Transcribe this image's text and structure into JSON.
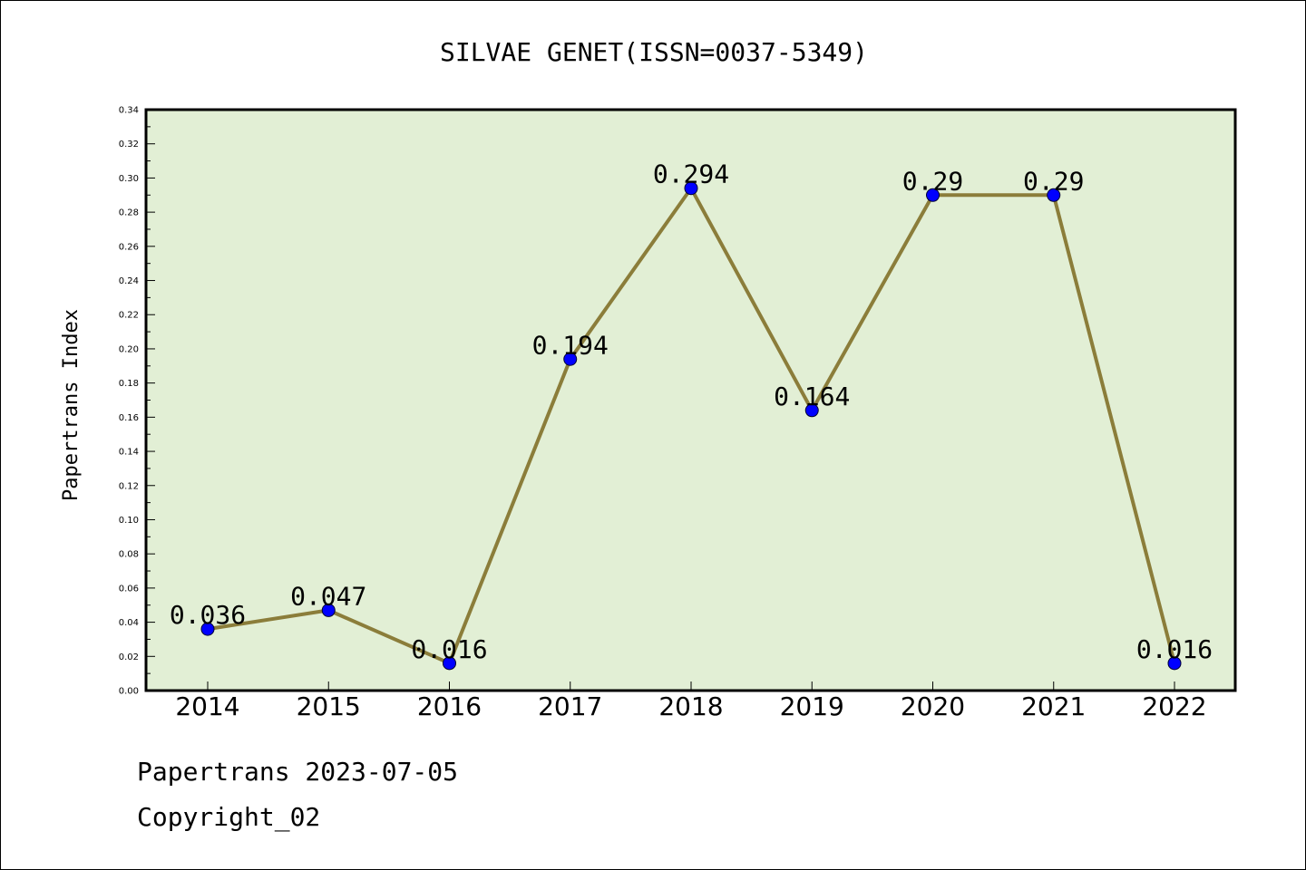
{
  "chart_data": {
    "type": "line",
    "title": "SILVAE GENET(ISSN=0037-5349)",
    "xlabel": "",
    "ylabel": "Papertrans Index",
    "categories": [
      "2014",
      "2015",
      "2016",
      "2017",
      "2018",
      "2019",
      "2020",
      "2021",
      "2022"
    ],
    "series": [
      {
        "values": [
          0.036,
          0.047,
          0.016,
          0.194,
          0.294,
          0.164,
          0.29,
          0.29,
          0.016
        ],
        "labels": [
          "0.036",
          "0.047",
          "0.016",
          "0.194",
          "0.294",
          "0.164",
          "0.29",
          "0.29",
          "0.016"
        ]
      }
    ],
    "ylim": [
      0,
      0.34
    ],
    "yticks": [
      "0.00",
      "0.02",
      "0.04",
      "0.06",
      "0.08",
      "0.10",
      "0.12",
      "0.14",
      "0.16",
      "0.18",
      "0.20",
      "0.22",
      "0.24",
      "0.26",
      "0.28",
      "0.30",
      "0.32",
      "0.34"
    ],
    "grid": false,
    "colors": {
      "plot_background": "#e2efd5",
      "line": "#8b7d3a",
      "marker": "#0000ff"
    }
  },
  "footer": {
    "line1": "Papertrans 2023-07-05",
    "line2": "Copyright_02"
  }
}
